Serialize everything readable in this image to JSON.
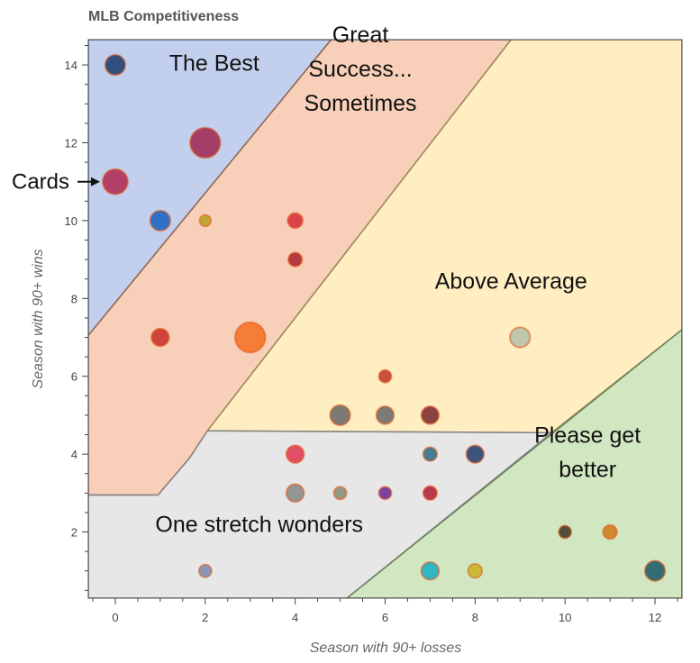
{
  "chart_data": {
    "type": "scatter",
    "title": "MLB Competitiveness",
    "xlabel": "Season with 90+ losses",
    "ylabel": "Season with 90+ wins",
    "xlim": [
      -0.6,
      12.6
    ],
    "ylim": [
      0.3,
      14.65
    ],
    "x_ticks": [
      0,
      2,
      4,
      6,
      8,
      10,
      12
    ],
    "y_ticks": [
      2,
      4,
      6,
      8,
      10,
      12,
      14
    ],
    "x_tick_labels": [
      "0",
      "2",
      "4",
      "6",
      "8",
      "10",
      "12"
    ],
    "y_tick_labels": [
      "2",
      "4",
      "6",
      "8",
      "10",
      "12",
      "14"
    ],
    "grid": false,
    "regions": [
      {
        "label": "The Best",
        "color": "#8fa9e0",
        "polygon": [
          [
            -0.6,
            14.65
          ],
          [
            4.8,
            14.65
          ],
          [
            -0.6,
            7.05
          ]
        ]
      },
      {
        "label": "Great Success... Sometimes",
        "label_lines": [
          "Great",
          "Success...",
          "Sometimes"
        ],
        "color": "#f2a77d",
        "polygon": [
          [
            -0.6,
            7.05
          ],
          [
            4.8,
            14.65
          ],
          [
            8.8,
            14.65
          ],
          [
            2.05,
            4.6
          ],
          [
            1.65,
            3.9
          ],
          [
            0.95,
            2.95
          ],
          [
            -0.6,
            2.95
          ]
        ]
      },
      {
        "label": "Above Average",
        "color": "#fde08e",
        "polygon": [
          [
            8.8,
            14.65
          ],
          [
            12.6,
            14.65
          ],
          [
            12.6,
            7.2
          ],
          [
            9.7,
            4.55
          ],
          [
            2.05,
            4.6
          ]
        ]
      },
      {
        "label": "One stretch wonders",
        "color": "#d4d4d4",
        "polygon": [
          [
            -0.6,
            2.95
          ],
          [
            0.95,
            2.95
          ],
          [
            1.65,
            3.9
          ],
          [
            2.05,
            4.6
          ],
          [
            9.7,
            4.55
          ],
          [
            5.15,
            0.3
          ],
          [
            -0.6,
            0.3
          ]
        ]
      },
      {
        "label": "Please get better",
        "label_lines": [
          "Please get",
          "better"
        ],
        "color": "#acd38f",
        "polygon": [
          [
            5.15,
            0.3
          ],
          [
            12.6,
            0.3
          ],
          [
            12.6,
            7.2
          ]
        ]
      }
    ],
    "annotation": {
      "text": "Cards",
      "x": 0,
      "y": 11
    },
    "points": [
      {
        "x": 0,
        "y": 14,
        "size": 1.6,
        "color": "#1d3c6e"
      },
      {
        "x": 2,
        "y": 12,
        "size": 2.4,
        "color": "#9e2a54"
      },
      {
        "x": 0,
        "y": 11,
        "size": 2.0,
        "color": "#b02a55"
      },
      {
        "x": 1,
        "y": 10,
        "size": 1.6,
        "color": "#1a63c0"
      },
      {
        "x": 2,
        "y": 10,
        "size": 0.9,
        "color": "#b3a31f"
      },
      {
        "x": 4,
        "y": 10,
        "size": 1.2,
        "color": "#d5303e"
      },
      {
        "x": 4,
        "y": 9,
        "size": 1.1,
        "color": "#a8282e"
      },
      {
        "x": 1,
        "y": 7,
        "size": 1.4,
        "color": "#c8302a"
      },
      {
        "x": 3,
        "y": 7,
        "size": 2.4,
        "color": "#f47222"
      },
      {
        "x": 9,
        "y": 7,
        "size": 1.6,
        "color": "#b5c2a8"
      },
      {
        "x": 6,
        "y": 6,
        "size": 1.0,
        "color": "#c13a2c"
      },
      {
        "x": 5,
        "y": 5,
        "size": 1.6,
        "color": "#6b6a6a"
      },
      {
        "x": 6,
        "y": 5,
        "size": 1.4,
        "color": "#6a6b6c"
      },
      {
        "x": 7,
        "y": 5,
        "size": 1.4,
        "color": "#7a2a30"
      },
      {
        "x": 4,
        "y": 4,
        "size": 1.4,
        "color": "#e03a52"
      },
      {
        "x": 7,
        "y": 4,
        "size": 1.1,
        "color": "#2b6e86"
      },
      {
        "x": 8,
        "y": 4,
        "size": 1.4,
        "color": "#243f70"
      },
      {
        "x": 4,
        "y": 3,
        "size": 1.4,
        "color": "#8a8a8a"
      },
      {
        "x": 5,
        "y": 3,
        "size": 1.0,
        "color": "#8c8f74"
      },
      {
        "x": 6,
        "y": 3,
        "size": 1.0,
        "color": "#6a2e96"
      },
      {
        "x": 7,
        "y": 3,
        "size": 1.1,
        "color": "#b0213b"
      },
      {
        "x": 10,
        "y": 2,
        "size": 1.0,
        "color": "#3b3a2a"
      },
      {
        "x": 11,
        "y": 2,
        "size": 1.1,
        "color": "#d27b1e"
      },
      {
        "x": 2,
        "y": 1,
        "size": 1.0,
        "color": "#7e8cb4"
      },
      {
        "x": 7,
        "y": 1,
        "size": 1.4,
        "color": "#1ab1c4"
      },
      {
        "x": 8,
        "y": 1,
        "size": 1.1,
        "color": "#c9b322"
      },
      {
        "x": 12,
        "y": 1,
        "size": 1.6,
        "color": "#1b5c67"
      }
    ]
  }
}
